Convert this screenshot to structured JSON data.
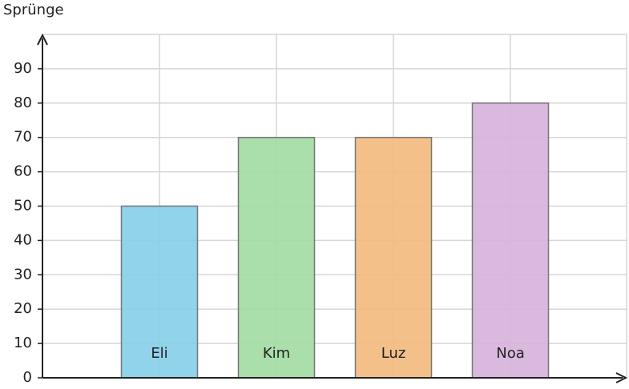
{
  "chart_data": {
    "type": "bar",
    "y_label": "Sprünge",
    "categories": [
      "Eli",
      "Kim",
      "Luz",
      "Noa"
    ],
    "values": [
      50,
      70,
      70,
      80
    ],
    "colors": [
      "#87cfe8",
      "#a3dba3",
      "#f2bb80",
      "#d7b3db"
    ],
    "ylim": [
      0,
      100
    ],
    "yticks": [
      0,
      10,
      20,
      30,
      40,
      50,
      60,
      70,
      80,
      90
    ],
    "grid": true
  }
}
